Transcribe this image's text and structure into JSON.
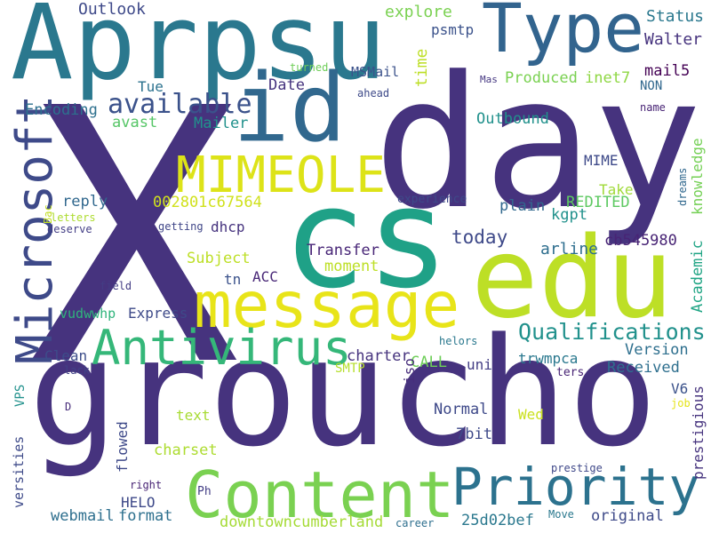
{
  "words": [
    {
      "text": "X",
      "color": "#46337e"
    },
    {
      "text": "day",
      "color": "#46337e"
    },
    {
      "text": "groucho",
      "color": "#46337e"
    },
    {
      "text": "Aprpsu",
      "color": "#2a788e"
    },
    {
      "text": "cs",
      "color": "#1fa187"
    },
    {
      "text": "edu",
      "color": "#bddf26"
    },
    {
      "text": "id",
      "color": "#31688e"
    },
    {
      "text": "Type",
      "color": "#32648e"
    },
    {
      "text": "message",
      "color": "#e8e419"
    },
    {
      "text": "MIMEOLE",
      "color": "#dde318"
    },
    {
      "text": "Microsoft",
      "color": "#3e4a89"
    },
    {
      "text": "Content",
      "color": "#7ad151"
    },
    {
      "text": "Priority",
      "color": "#2c728e"
    },
    {
      "text": "Antivirus",
      "color": "#35b779"
    },
    {
      "text": "Qualifications",
      "color": "#21918c"
    },
    {
      "text": "available",
      "color": "#3b528b"
    },
    {
      "text": "Outlook",
      "color": "#3e4989"
    },
    {
      "text": "explore",
      "color": "#7ad151"
    },
    {
      "text": "Status",
      "color": "#2a788e"
    },
    {
      "text": "Walter",
      "color": "#46337e"
    },
    {
      "text": "psmtp",
      "color": "#3b528b"
    },
    {
      "text": "time",
      "color": "#bddf26"
    },
    {
      "text": "MSMail",
      "color": "#3b528b"
    },
    {
      "text": "turned",
      "color": "#6ece58"
    },
    {
      "text": "Date",
      "color": "#46337e"
    },
    {
      "text": "Mas",
      "color": "#453781"
    },
    {
      "text": "Produced",
      "color": "#7ad151"
    },
    {
      "text": "inet7",
      "color": "#8fd744"
    },
    {
      "text": "mail5",
      "color": "#440154"
    },
    {
      "text": "NON",
      "color": "#31688e"
    },
    {
      "text": "Tue",
      "color": "#2c728e"
    },
    {
      "text": "ahead",
      "color": "#3e4a89"
    },
    {
      "text": "Encoding",
      "color": "#2d708e"
    },
    {
      "text": "avast",
      "color": "#56c667"
    },
    {
      "text": "Mailer",
      "color": "#21918c"
    },
    {
      "text": "Outbound",
      "color": "#21918c"
    },
    {
      "text": "name",
      "color": "#482475"
    },
    {
      "text": "MIME",
      "color": "#3e4a89"
    },
    {
      "text": "knowledge",
      "color": "#74d055"
    },
    {
      "text": "dreams",
      "color": "#31688e"
    },
    {
      "text": "002801c67564",
      "color": "#d0e11c"
    },
    {
      "text": "Take",
      "color": "#a0da39"
    },
    {
      "text": "REDITED",
      "color": "#5ec962"
    },
    {
      "text": "experience",
      "color": "#3e4a89"
    },
    {
      "text": "reply",
      "color": "#31688e"
    },
    {
      "text": "plain",
      "color": "#31688e"
    },
    {
      "text": "kgpt",
      "color": "#21918c"
    },
    {
      "text": "Bac",
      "color": "#c2df23"
    },
    {
      "text": "letters",
      "color": "#addc30"
    },
    {
      "text": "getting",
      "color": "#404688"
    },
    {
      "text": "dhcp",
      "color": "#46337e"
    },
    {
      "text": "deserve",
      "color": "#433e85"
    },
    {
      "text": "today",
      "color": "#3e4989"
    },
    {
      "text": "arline",
      "color": "#2e6e8e"
    },
    {
      "text": "cb545980",
      "color": "#482475"
    },
    {
      "text": "Transfer",
      "color": "#482677"
    },
    {
      "text": "Subject",
      "color": "#bddf26"
    },
    {
      "text": "moment",
      "color": "#bddf26"
    },
    {
      "text": "ACC",
      "color": "#482777"
    },
    {
      "text": "tn",
      "color": "#3b528b"
    },
    {
      "text": "field",
      "color": "#433d84"
    },
    {
      "text": "Academic",
      "color": "#21a585"
    },
    {
      "text": "vudwwhp",
      "color": "#2fb47c"
    },
    {
      "text": "Express",
      "color": "#3e4a89"
    },
    {
      "text": "Version",
      "color": "#2e6f8e"
    },
    {
      "text": "Received",
      "color": "#2e6f8e"
    },
    {
      "text": "helors",
      "color": "#2a788e"
    },
    {
      "text": "Clean",
      "color": "#3d4d8a"
    },
    {
      "text": "charter",
      "color": "#46337e"
    },
    {
      "text": "CALL",
      "color": "#6ece58"
    },
    {
      "text": "trwmpca",
      "color": "#2a788e"
    },
    {
      "text": "lack",
      "color": "#414287"
    },
    {
      "text": "SMTP",
      "color": "#b5de2b"
    },
    {
      "text": "uni",
      "color": "#433e85"
    },
    {
      "text": "ters",
      "color": "#482475"
    },
    {
      "text": "iso",
      "color": "#472d7b"
    },
    {
      "text": "V6",
      "color": "#3b528b"
    },
    {
      "text": "prestigious",
      "color": "#46337e"
    },
    {
      "text": "VPS",
      "color": "#21918c"
    },
    {
      "text": "D",
      "color": "#472c7a"
    },
    {
      "text": "Normal",
      "color": "#3e4989"
    },
    {
      "text": "Wed",
      "color": "#cae11f"
    },
    {
      "text": "text",
      "color": "#a8db34"
    },
    {
      "text": "7bit",
      "color": "#3e4989"
    },
    {
      "text": "job",
      "color": "#e5e419"
    },
    {
      "text": "flowed",
      "color": "#3e4989"
    },
    {
      "text": "charset",
      "color": "#addc30"
    },
    {
      "text": "versities",
      "color": "#3e4a89"
    },
    {
      "text": "prestige",
      "color": "#3f4889"
    },
    {
      "text": "right",
      "color": "#482475"
    },
    {
      "text": "Ph",
      "color": "#433e85"
    },
    {
      "text": "HELO",
      "color": "#3e4989"
    },
    {
      "text": "webmail",
      "color": "#2e6f8e"
    },
    {
      "text": "format",
      "color": "#2d708e"
    },
    {
      "text": "downtowncumberland",
      "color": "#a5db36"
    },
    {
      "text": "career",
      "color": "#2e6f8e"
    },
    {
      "text": "25d02bef",
      "color": "#2a788e"
    },
    {
      "text": "original",
      "color": "#3e4a89"
    },
    {
      "text": "Move",
      "color": "#2a788e"
    }
  ]
}
